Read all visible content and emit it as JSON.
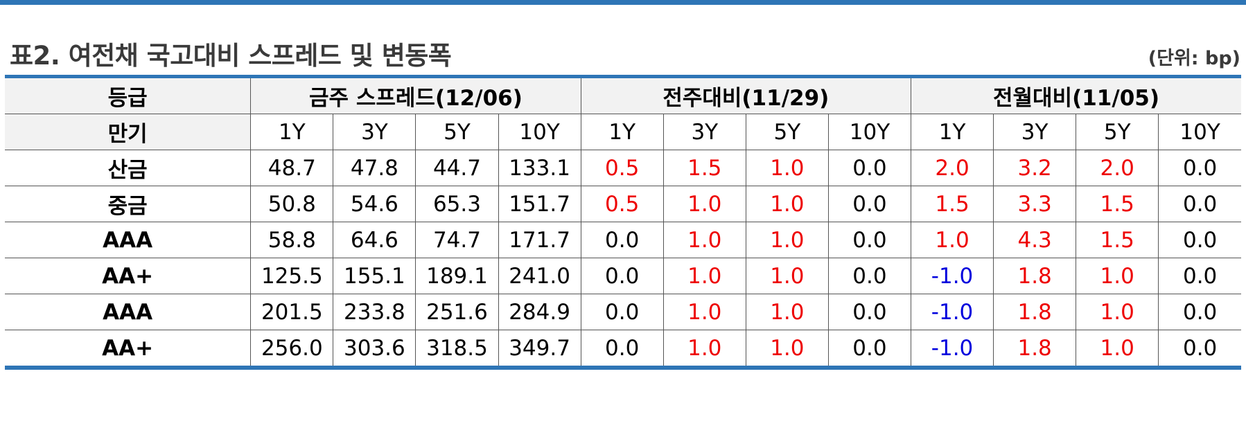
{
  "title": "표2. 여전채 국고대비 스프레드 및 변동폭",
  "unit": "(단위: bp)",
  "colors": {
    "rule": "#2e75b6",
    "header_bg": "#f2f2f2",
    "positive": "#ee0000",
    "negative": "#0000dd",
    "zero": "#000000"
  },
  "table": {
    "grade_header": "등급",
    "maturity_header": "만기",
    "groups": [
      "금주 스프레드(12/06)",
      "전주대비(11/29)",
      "전월대비(11/05)"
    ],
    "maturities": [
      "1Y",
      "3Y",
      "5Y",
      "10Y",
      "1Y",
      "3Y",
      "5Y",
      "10Y",
      "1Y",
      "3Y",
      "5Y",
      "10Y"
    ],
    "rows": [
      {
        "label": "산금",
        "values": [
          "48.7",
          "47.8",
          "44.7",
          "133.1",
          "0.5",
          "1.5",
          "1.0",
          "0.0",
          "2.0",
          "3.2",
          "2.0",
          "0.0"
        ]
      },
      {
        "label": "중금",
        "values": [
          "50.8",
          "54.6",
          "65.3",
          "151.7",
          "0.5",
          "1.0",
          "1.0",
          "0.0",
          "1.5",
          "3.3",
          "1.5",
          "0.0"
        ]
      },
      {
        "label": "AAA",
        "values": [
          "58.8",
          "64.6",
          "74.7",
          "171.7",
          "0.0",
          "1.0",
          "1.0",
          "0.0",
          "1.0",
          "4.3",
          "1.5",
          "0.0"
        ]
      },
      {
        "label": "AA+",
        "values": [
          "125.5",
          "155.1",
          "189.1",
          "241.0",
          "0.0",
          "1.0",
          "1.0",
          "0.0",
          "-1.0",
          "1.8",
          "1.0",
          "0.0"
        ]
      },
      {
        "label": "AAA",
        "values": [
          "201.5",
          "233.8",
          "251.6",
          "284.9",
          "0.0",
          "1.0",
          "1.0",
          "0.0",
          "-1.0",
          "1.8",
          "1.0",
          "0.0"
        ]
      },
      {
        "label": "AA+",
        "values": [
          "256.0",
          "303.6",
          "318.5",
          "349.7",
          "0.0",
          "1.0",
          "1.0",
          "0.0",
          "-1.0",
          "1.8",
          "1.0",
          "0.0"
        ]
      }
    ]
  }
}
